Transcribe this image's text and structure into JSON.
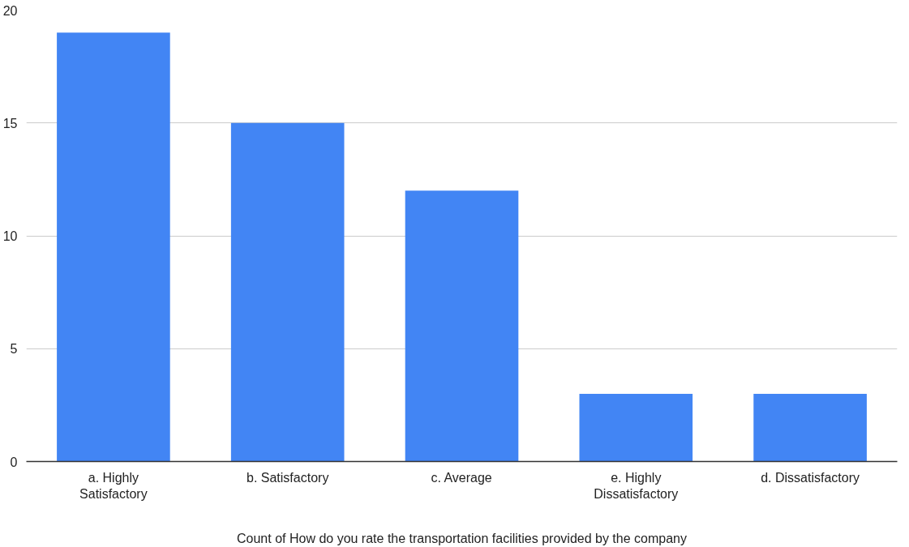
{
  "chart_data": {
    "type": "bar",
    "xlabel": "Count of How do you rate the transportation facilities provided by the company",
    "categories": [
      "a. Highly Satisfactory",
      "b. Satisfactory",
      "c. Average",
      "e. Highly Dissatisfactory",
      "d. Dissatisfactory"
    ],
    "values": [
      19,
      15,
      12,
      3,
      3
    ],
    "color": "#4285f4",
    "ylim": [
      0,
      20
    ],
    "yticks": [
      0,
      5,
      10,
      15,
      20
    ],
    "grid": "y",
    "legend": false
  }
}
